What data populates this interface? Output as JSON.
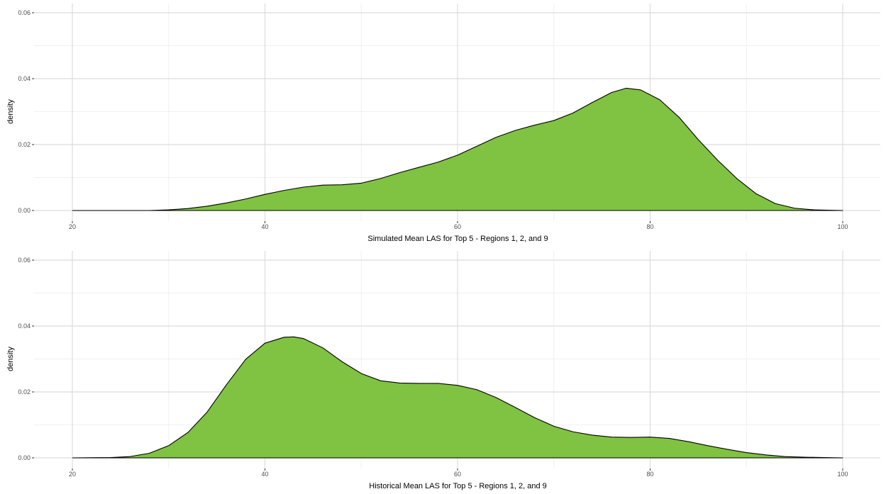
{
  "colors": {
    "fill": "#80c241",
    "outline": "#000000",
    "major_grid": "#dcdcdc",
    "minor_grid": "#f0f0f0",
    "tick_text": "#4d4d4d"
  },
  "chart_data": [
    {
      "type": "area",
      "geom": "density",
      "xlabel": "Simulated Mean LAS for Top 5 - Regions 1, 2, and 9",
      "ylabel": "density",
      "xlim": [
        20,
        100
      ],
      "ylim": [
        0,
        0.06
      ],
      "xticks": [
        20,
        40,
        60,
        80,
        100
      ],
      "yticks": [
        0.0,
        0.02,
        0.04,
        0.06
      ],
      "xtick_labels": [
        "20",
        "40",
        "60",
        "80",
        "100"
      ],
      "ytick_labels": [
        "0.00",
        "0.02",
        "0.04",
        "0.06"
      ],
      "grid": true,
      "legend": "none",
      "x": [
        20,
        28,
        30,
        32,
        34,
        36,
        38,
        40,
        42,
        44,
        46,
        48,
        50,
        52,
        54,
        56,
        58,
        60,
        62,
        64,
        66,
        68,
        70,
        72,
        74,
        76,
        77.5,
        79,
        81,
        83,
        85,
        87,
        89,
        91,
        93,
        95,
        97,
        100
      ],
      "y": [
        0.0,
        0.0,
        0.0002,
        0.0006,
        0.0013,
        0.0023,
        0.0035,
        0.0049,
        0.0061,
        0.0071,
        0.0077,
        0.0078,
        0.0083,
        0.0097,
        0.0115,
        0.0131,
        0.0147,
        0.0168,
        0.0195,
        0.0222,
        0.0243,
        0.0259,
        0.0273,
        0.0296,
        0.0328,
        0.0358,
        0.0371,
        0.0366,
        0.0336,
        0.0283,
        0.0215,
        0.0153,
        0.0097,
        0.0051,
        0.0021,
        0.0007,
        0.0002,
        0.0
      ]
    },
    {
      "type": "area",
      "geom": "density",
      "xlabel": "Historical Mean LAS for Top 5 - Regions 1, 2, and 9",
      "ylabel": "density",
      "xlim": [
        20,
        100
      ],
      "ylim": [
        0,
        0.06
      ],
      "xticks": [
        20,
        40,
        60,
        80,
        100
      ],
      "yticks": [
        0.0,
        0.02,
        0.04,
        0.06
      ],
      "xtick_labels": [
        "20",
        "40",
        "60",
        "80",
        "100"
      ],
      "ytick_labels": [
        "0.00",
        "0.02",
        "0.04",
        "0.06"
      ],
      "grid": true,
      "legend": "none",
      "x": [
        20,
        24,
        26,
        28,
        30,
        32,
        34,
        36,
        38,
        40,
        42,
        43,
        44,
        46,
        48,
        50,
        52,
        54,
        56,
        58,
        60,
        62,
        64,
        66,
        68,
        70,
        72,
        74,
        76,
        78,
        80,
        82,
        84,
        86,
        88,
        90,
        92,
        94,
        96,
        98,
        100
      ],
      "y": [
        0.0,
        0.0001,
        0.0004,
        0.0014,
        0.0037,
        0.0077,
        0.0139,
        0.0222,
        0.0299,
        0.0348,
        0.0366,
        0.0367,
        0.0362,
        0.0334,
        0.0292,
        0.0256,
        0.0234,
        0.0227,
        0.0226,
        0.0226,
        0.022,
        0.0207,
        0.0183,
        0.0153,
        0.0122,
        0.0096,
        0.0079,
        0.0069,
        0.0063,
        0.0062,
        0.0063,
        0.0059,
        0.0049,
        0.0037,
        0.0026,
        0.0016,
        0.0009,
        0.0004,
        0.0002,
        0.0001,
        0.0
      ]
    }
  ]
}
